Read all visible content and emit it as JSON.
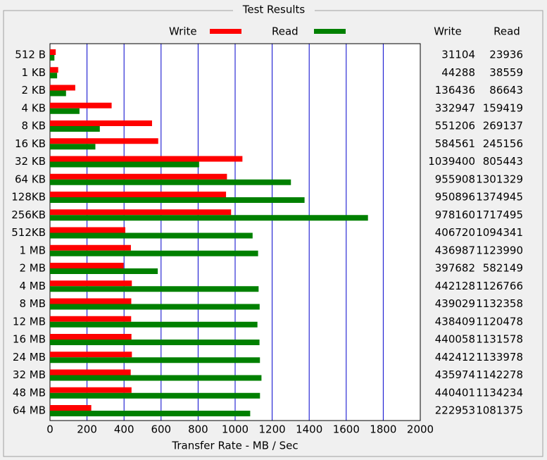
{
  "chart_data": {
    "type": "hbar",
    "title": "Test Results",
    "categories": [
      "512 B",
      "1 KB",
      "2 KB",
      "4 KB",
      "8 KB",
      "16 KB",
      "32 KB",
      "64 KB",
      "128KB",
      "256KB",
      "512KB",
      "1 MB",
      "2 MB",
      "4 MB",
      "8 MB",
      "12 MB",
      "16 MB",
      "24 MB",
      "32 MB",
      "48 MB",
      "64 MB"
    ],
    "series": [
      {
        "name": "Write",
        "color": "#ff0000",
        "values": [
          31.104,
          44.288,
          136.436,
          332.947,
          551.206,
          584.561,
          1039.4,
          955.908,
          950.896,
          978.16,
          406.72,
          436.987,
          397.682,
          442.128,
          439.029,
          438.409,
          440.058,
          442.412,
          435.974,
          440.401,
          222.953
        ],
        "value_labels": [
          "31104",
          "44288",
          "136436",
          "332947",
          "551206",
          "584561",
          "1039400",
          "955908",
          "950896",
          "978160",
          "406720",
          "436987",
          "397682",
          "442128",
          "439029",
          "438409",
          "440058",
          "442412",
          "435974",
          "440401",
          "222953"
        ]
      },
      {
        "name": "Read",
        "color": "#008000",
        "values": [
          23.936,
          38.559,
          86.643,
          159.419,
          269.137,
          245.156,
          805.443,
          1301.329,
          1374.945,
          1717.495,
          1094.341,
          1123.99,
          582.149,
          1126.766,
          1132.358,
          1120.478,
          1131.578,
          1133.978,
          1142.278,
          1134.234,
          1081.375
        ],
        "value_labels": [
          "23936",
          "38559",
          "86643",
          "159419",
          "269137",
          "245156",
          "805443",
          "1301329",
          "1374945",
          "1717495",
          "1094341",
          "1123990",
          "582149",
          "1126766",
          "1132358",
          "1120478",
          "1131578",
          "1133978",
          "1142278",
          "1134234",
          "1081375"
        ]
      }
    ],
    "xlabel": "Transfer Rate - MB / Sec",
    "xlim": [
      0,
      2000
    ],
    "xticks": [
      0,
      200,
      400,
      600,
      800,
      1000,
      1200,
      1400,
      1600,
      1800,
      2000
    ],
    "grid": true,
    "grid_color": "#0000cc"
  }
}
